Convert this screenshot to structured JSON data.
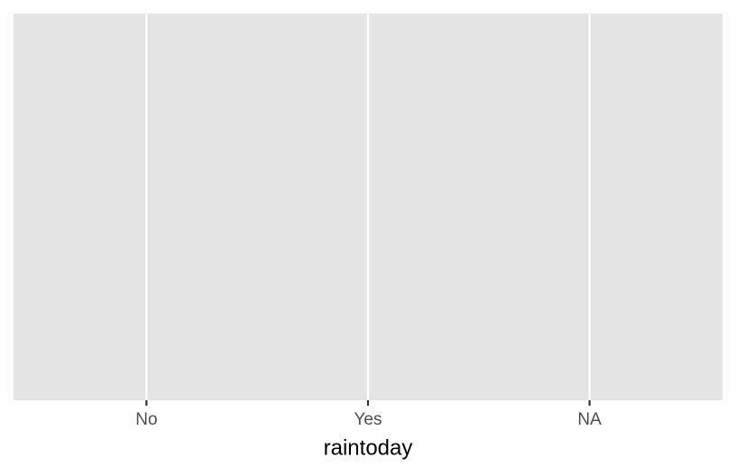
{
  "chart_data": {
    "type": "bar",
    "categories": [
      "No",
      "Yes",
      "NA"
    ],
    "x_label": "raintoday",
    "grid": true,
    "panel_color": "#e5e5e5",
    "grid_color": "#ffffff"
  }
}
